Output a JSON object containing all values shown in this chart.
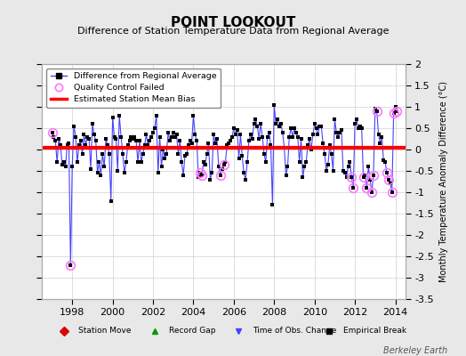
{
  "title": "POINT LOOKOUT",
  "subtitle": "Difference of Station Temperature Data from Regional Average",
  "ylabel": "Monthly Temperature Anomaly Difference (°C)",
  "bias": 0.05,
  "xlim": [
    1996.5,
    2014.5
  ],
  "ylim": [
    -3.5,
    2.0
  ],
  "yticks": [
    -3.5,
    -3.0,
    -2.5,
    -2.0,
    -1.5,
    -1.0,
    -0.5,
    0.0,
    0.5,
    1.0,
    1.5,
    2.0
  ],
  "xticks": [
    1998,
    2000,
    2002,
    2004,
    2006,
    2008,
    2010,
    2012,
    2014
  ],
  "bg_color": "#e8e8e8",
  "plot_bg": "#ffffff",
  "grid_color": "#d0d0d0",
  "line_color": "#4444ff",
  "marker_color": "#000000",
  "bias_color": "#ff0000",
  "qc_fail_color": "#ff77ff",
  "watermark": "Berkeley Earth",
  "data": [
    [
      1997.0,
      0.4
    ],
    [
      1997.083,
      0.3
    ],
    [
      1997.167,
      0.2
    ],
    [
      1997.25,
      -0.3
    ],
    [
      1997.333,
      0.25
    ],
    [
      1997.417,
      0.1
    ],
    [
      1997.5,
      -0.35
    ],
    [
      1997.583,
      -0.3
    ],
    [
      1997.667,
      -0.4
    ],
    [
      1997.75,
      0.1
    ],
    [
      1997.833,
      0.15
    ],
    [
      1997.917,
      -2.7
    ],
    [
      1998.0,
      -0.4
    ],
    [
      1998.083,
      0.55
    ],
    [
      1998.167,
      0.3
    ],
    [
      1998.25,
      -0.3
    ],
    [
      1998.333,
      0.1
    ],
    [
      1998.417,
      0.2
    ],
    [
      1998.5,
      -0.1
    ],
    [
      1998.583,
      0.35
    ],
    [
      1998.667,
      0.1
    ],
    [
      1998.75,
      0.3
    ],
    [
      1998.833,
      0.25
    ],
    [
      1998.917,
      -0.45
    ],
    [
      1999.0,
      0.6
    ],
    [
      1999.083,
      0.35
    ],
    [
      1999.167,
      0.2
    ],
    [
      1999.25,
      -0.55
    ],
    [
      1999.333,
      -0.3
    ],
    [
      1999.417,
      -0.6
    ],
    [
      1999.5,
      -0.1
    ],
    [
      1999.583,
      -0.4
    ],
    [
      1999.667,
      0.25
    ],
    [
      1999.75,
      0.1
    ],
    [
      1999.833,
      -0.1
    ],
    [
      1999.917,
      -1.2
    ],
    [
      2000.0,
      0.75
    ],
    [
      2000.083,
      0.3
    ],
    [
      2000.167,
      0.25
    ],
    [
      2000.25,
      -0.5
    ],
    [
      2000.333,
      0.8
    ],
    [
      2000.417,
      0.3
    ],
    [
      2000.5,
      -0.1
    ],
    [
      2000.583,
      -0.55
    ],
    [
      2000.667,
      -0.3
    ],
    [
      2000.75,
      0.1
    ],
    [
      2000.833,
      0.2
    ],
    [
      2000.917,
      0.3
    ],
    [
      2001.0,
      0.25
    ],
    [
      2001.083,
      0.3
    ],
    [
      2001.167,
      0.2
    ],
    [
      2001.25,
      -0.3
    ],
    [
      2001.333,
      0.2
    ],
    [
      2001.417,
      -0.3
    ],
    [
      2001.5,
      -0.1
    ],
    [
      2001.583,
      0.1
    ],
    [
      2001.667,
      0.35
    ],
    [
      2001.75,
      0.1
    ],
    [
      2001.833,
      0.2
    ],
    [
      2001.917,
      0.3
    ],
    [
      2002.0,
      0.4
    ],
    [
      2002.083,
      0.5
    ],
    [
      2002.167,
      0.8
    ],
    [
      2002.25,
      -0.55
    ],
    [
      2002.333,
      0.3
    ],
    [
      2002.417,
      -0.4
    ],
    [
      2002.5,
      0.0
    ],
    [
      2002.583,
      -0.2
    ],
    [
      2002.667,
      -0.1
    ],
    [
      2002.75,
      0.4
    ],
    [
      2002.833,
      0.2
    ],
    [
      2002.917,
      0.3
    ],
    [
      2003.0,
      0.4
    ],
    [
      2003.083,
      0.3
    ],
    [
      2003.167,
      0.35
    ],
    [
      2003.25,
      -0.1
    ],
    [
      2003.333,
      0.2
    ],
    [
      2003.417,
      -0.3
    ],
    [
      2003.5,
      -0.6
    ],
    [
      2003.583,
      -0.15
    ],
    [
      2003.667,
      -0.1
    ],
    [
      2003.75,
      0.1
    ],
    [
      2003.833,
      0.2
    ],
    [
      2003.917,
      0.15
    ],
    [
      2004.0,
      0.8
    ],
    [
      2004.083,
      0.35
    ],
    [
      2004.167,
      0.2
    ],
    [
      2004.25,
      -0.65
    ],
    [
      2004.333,
      -0.55
    ],
    [
      2004.417,
      -0.6
    ],
    [
      2004.5,
      -0.3
    ],
    [
      2004.583,
      -0.35
    ],
    [
      2004.667,
      -0.1
    ],
    [
      2004.75,
      0.15
    ],
    [
      2004.833,
      -0.7
    ],
    [
      2004.917,
      -0.55
    ],
    [
      2005.0,
      0.35
    ],
    [
      2005.083,
      0.15
    ],
    [
      2005.167,
      0.25
    ],
    [
      2005.25,
      -0.4
    ],
    [
      2005.333,
      -0.6
    ],
    [
      2005.417,
      -0.45
    ],
    [
      2005.5,
      -0.35
    ],
    [
      2005.583,
      -0.3
    ],
    [
      2005.667,
      0.1
    ],
    [
      2005.75,
      0.15
    ],
    [
      2005.833,
      0.2
    ],
    [
      2005.917,
      0.3
    ],
    [
      2006.0,
      0.5
    ],
    [
      2006.083,
      0.35
    ],
    [
      2006.167,
      0.45
    ],
    [
      2006.25,
      -0.2
    ],
    [
      2006.333,
      0.35
    ],
    [
      2006.417,
      -0.15
    ],
    [
      2006.5,
      -0.55
    ],
    [
      2006.583,
      -0.7
    ],
    [
      2006.667,
      -0.3
    ],
    [
      2006.75,
      0.2
    ],
    [
      2006.833,
      0.35
    ],
    [
      2006.917,
      0.25
    ],
    [
      2007.0,
      0.6
    ],
    [
      2007.083,
      0.7
    ],
    [
      2007.167,
      0.55
    ],
    [
      2007.25,
      0.25
    ],
    [
      2007.333,
      0.6
    ],
    [
      2007.417,
      0.3
    ],
    [
      2007.5,
      -0.1
    ],
    [
      2007.583,
      -0.3
    ],
    [
      2007.667,
      0.3
    ],
    [
      2007.75,
      0.4
    ],
    [
      2007.833,
      0.1
    ],
    [
      2007.917,
      -1.3
    ],
    [
      2008.0,
      1.05
    ],
    [
      2008.083,
      0.6
    ],
    [
      2008.167,
      0.7
    ],
    [
      2008.25,
      0.55
    ],
    [
      2008.333,
      0.6
    ],
    [
      2008.417,
      0.4
    ],
    [
      2008.5,
      0.05
    ],
    [
      2008.583,
      -0.6
    ],
    [
      2008.667,
      -0.4
    ],
    [
      2008.75,
      0.3
    ],
    [
      2008.833,
      0.5
    ],
    [
      2008.917,
      0.3
    ],
    [
      2009.0,
      0.5
    ],
    [
      2009.083,
      0.4
    ],
    [
      2009.167,
      0.3
    ],
    [
      2009.25,
      -0.3
    ],
    [
      2009.333,
      0.25
    ],
    [
      2009.417,
      -0.65
    ],
    [
      2009.5,
      -0.4
    ],
    [
      2009.583,
      -0.3
    ],
    [
      2009.667,
      0.1
    ],
    [
      2009.75,
      0.25
    ],
    [
      2009.833,
      0.0
    ],
    [
      2009.917,
      0.35
    ],
    [
      2010.0,
      0.6
    ],
    [
      2010.083,
      0.5
    ],
    [
      2010.167,
      0.35
    ],
    [
      2010.25,
      0.55
    ],
    [
      2010.333,
      0.55
    ],
    [
      2010.417,
      0.15
    ],
    [
      2010.5,
      -0.1
    ],
    [
      2010.583,
      -0.5
    ],
    [
      2010.667,
      -0.35
    ],
    [
      2010.75,
      0.1
    ],
    [
      2010.833,
      -0.1
    ],
    [
      2010.917,
      -0.5
    ],
    [
      2011.0,
      0.7
    ],
    [
      2011.083,
      0.4
    ],
    [
      2011.167,
      0.3
    ],
    [
      2011.25,
      0.4
    ],
    [
      2011.333,
      0.45
    ],
    [
      2011.417,
      -0.5
    ],
    [
      2011.5,
      -0.55
    ],
    [
      2011.583,
      -0.65
    ],
    [
      2011.667,
      -0.4
    ],
    [
      2011.75,
      -0.3
    ],
    [
      2011.833,
      -0.65
    ],
    [
      2011.917,
      -0.9
    ],
    [
      2012.0,
      0.6
    ],
    [
      2012.083,
      0.7
    ],
    [
      2012.167,
      0.5
    ],
    [
      2012.25,
      0.55
    ],
    [
      2012.333,
      0.5
    ],
    [
      2012.417,
      -0.65
    ],
    [
      2012.5,
      -0.6
    ],
    [
      2012.583,
      -0.9
    ],
    [
      2012.667,
      -0.4
    ],
    [
      2012.75,
      -0.7
    ],
    [
      2012.833,
      -1.0
    ],
    [
      2012.917,
      -0.6
    ],
    [
      2013.0,
      0.95
    ],
    [
      2013.083,
      0.9
    ],
    [
      2013.167,
      0.35
    ],
    [
      2013.25,
      0.15
    ],
    [
      2013.333,
      0.3
    ],
    [
      2013.417,
      -0.25
    ],
    [
      2013.5,
      -0.3
    ],
    [
      2013.583,
      -0.55
    ],
    [
      2013.667,
      -0.7
    ],
    [
      2013.75,
      -0.8
    ],
    [
      2013.833,
      -1.0
    ],
    [
      2013.917,
      0.85
    ],
    [
      2014.0,
      1.0
    ],
    [
      2014.083,
      0.9
    ]
  ],
  "qc_failed": [
    [
      1997.0,
      0.4
    ],
    [
      1997.917,
      -2.7
    ],
    [
      2004.333,
      -0.55
    ],
    [
      2004.417,
      -0.6
    ],
    [
      2005.333,
      -0.6
    ],
    [
      2005.5,
      -0.35
    ],
    [
      2011.833,
      -0.65
    ],
    [
      2011.917,
      -0.9
    ],
    [
      2012.417,
      -0.65
    ],
    [
      2012.583,
      -0.9
    ],
    [
      2012.833,
      -1.0
    ],
    [
      2012.917,
      -0.6
    ],
    [
      2013.083,
      0.9
    ],
    [
      2013.583,
      -0.55
    ],
    [
      2013.667,
      -0.7
    ],
    [
      2013.833,
      -1.0
    ],
    [
      2013.917,
      0.85
    ],
    [
      2014.083,
      0.9
    ]
  ],
  "bottom_legend": [
    {
      "marker": "D",
      "color": "#dd0000",
      "label": "Station Move"
    },
    {
      "marker": "^",
      "color": "#009900",
      "label": "Record Gap"
    },
    {
      "marker": "v",
      "color": "#4444ff",
      "label": "Time of Obs. Change"
    },
    {
      "marker": "s",
      "color": "#000000",
      "label": "Empirical Break"
    }
  ]
}
